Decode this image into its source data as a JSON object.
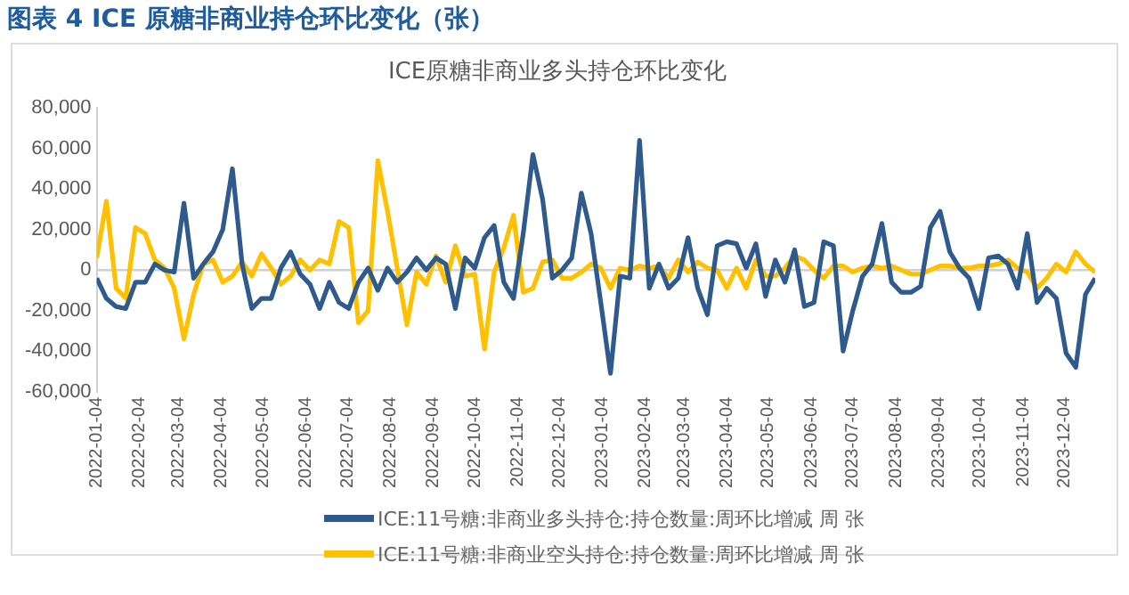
{
  "chart_data": {
    "type": "line",
    "title": "图表 4 ICE 原糖非商业持仓环比变化（张）",
    "subtitle": "ICE原糖非商业多头持仓环比变化",
    "x": [
      "2022-01-04",
      "2022-01-11",
      "2022-01-18",
      "2022-01-25",
      "2022-02-01",
      "2022-02-08",
      "2022-02-15",
      "2022-02-22",
      "2022-03-01",
      "2022-03-08",
      "2022-03-15",
      "2022-03-22",
      "2022-03-29",
      "2022-04-05",
      "2022-04-12",
      "2022-04-19",
      "2022-04-26",
      "2022-05-03",
      "2022-05-10",
      "2022-05-17",
      "2022-05-24",
      "2022-05-31",
      "2022-06-07",
      "2022-06-14",
      "2022-06-21",
      "2022-06-28",
      "2022-07-05",
      "2022-07-12",
      "2022-07-19",
      "2022-07-26",
      "2022-08-02",
      "2022-08-09",
      "2022-08-16",
      "2022-08-23",
      "2022-08-30",
      "2022-09-06",
      "2022-09-13",
      "2022-09-20",
      "2022-09-27",
      "2022-10-04",
      "2022-10-11",
      "2022-10-18",
      "2022-10-25",
      "2022-11-01",
      "2022-11-08",
      "2022-11-15",
      "2022-11-22",
      "2022-11-29",
      "2022-12-06",
      "2022-12-13",
      "2022-12-20",
      "2022-12-27",
      "2023-01-03",
      "2023-01-10",
      "2023-01-17",
      "2023-01-24",
      "2023-01-31",
      "2023-02-07",
      "2023-02-14",
      "2023-02-21",
      "2023-02-28",
      "2023-03-07",
      "2023-03-14",
      "2023-03-21",
      "2023-03-28",
      "2023-04-04",
      "2023-04-11",
      "2023-04-18",
      "2023-04-25",
      "2023-05-02",
      "2023-05-09",
      "2023-05-16",
      "2023-05-23",
      "2023-05-30",
      "2023-06-06",
      "2023-06-13",
      "2023-06-20",
      "2023-06-27",
      "2023-07-04",
      "2023-07-11",
      "2023-07-18",
      "2023-07-25",
      "2023-08-01",
      "2023-08-08",
      "2023-08-15",
      "2023-08-22",
      "2023-08-29",
      "2023-09-05",
      "2023-09-12",
      "2023-09-19",
      "2023-09-26",
      "2023-10-03",
      "2023-10-10",
      "2023-10-17",
      "2023-10-24",
      "2023-10-31",
      "2023-11-07",
      "2023-11-14",
      "2023-11-21",
      "2023-11-28",
      "2023-12-05",
      "2023-12-12",
      "2023-12-19",
      "2023-12-26"
    ],
    "series": [
      {
        "name": "ICE:11号糖:非商业多头持仓:持仓数量:周环比增减 周 张",
        "color": "#2e5a8e",
        "values": [
          -4000,
          -14000,
          -18000,
          -19000,
          -6000,
          -6000,
          3000,
          0,
          -1000,
          33000,
          -4000,
          3000,
          9000,
          20000,
          50000,
          3000,
          -19000,
          -14000,
          -14000,
          1000,
          9000,
          -2000,
          -7000,
          -19000,
          -6000,
          -16000,
          -19000,
          -6000,
          1000,
          -10000,
          1000,
          -6000,
          -1000,
          6000,
          0,
          6000,
          3000,
          -19000,
          6000,
          1000,
          16000,
          22000,
          -6000,
          -14000,
          18000,
          57000,
          35000,
          -4000,
          0,
          6000,
          38000,
          18000,
          -16000,
          -51000,
          -3000,
          -4000,
          64000,
          -9000,
          3000,
          -9000,
          -4000,
          16000,
          -9000,
          -22000,
          12000,
          14000,
          13000,
          1000,
          13000,
          -13000,
          5000,
          -6000,
          10000,
          -18000,
          -16000,
          14000,
          12000,
          -40000,
          -20000,
          -3000,
          3000,
          23000,
          -6000,
          -11000,
          -11000,
          -8000,
          21000,
          29000,
          9000,
          1000,
          -4000,
          -19000,
          6000,
          7000,
          3000,
          -9000,
          18000,
          -16000,
          -9000,
          -14000,
          -41000,
          -48000,
          -12000,
          -4000
        ]
      },
      {
        "name": "ICE:11号糖:非商业空头持仓:持仓数量:周环比增减 周 张",
        "color": "#ffc000",
        "values": [
          6000,
          34000,
          -9000,
          -14000,
          21000,
          18000,
          5000,
          1000,
          -9000,
          -34000,
          -12000,
          3000,
          5000,
          -6000,
          -3000,
          4000,
          -3000,
          8000,
          1000,
          -7000,
          -3000,
          5000,
          0,
          5000,
          3000,
          24000,
          21000,
          -26000,
          -20000,
          54000,
          29000,
          1000,
          -27000,
          -1000,
          -7000,
          7000,
          -6000,
          12000,
          -3000,
          -2000,
          -39000,
          -1000,
          11000,
          27000,
          -11000,
          -9000,
          4000,
          5000,
          -4000,
          -4000,
          -1000,
          3000,
          1000,
          -9000,
          1000,
          0,
          2000,
          1000,
          2000,
          -4000,
          5000,
          -1000,
          4000,
          1000,
          0,
          -9000,
          1000,
          -9000,
          5000,
          -3000,
          -3000,
          1000,
          7000,
          5000,
          0,
          -4000,
          2000,
          2000,
          -1000,
          1000,
          2000,
          1000,
          2000,
          0,
          -2000,
          -2000,
          0,
          2000,
          2000,
          1000,
          1000,
          2000,
          2000,
          3000,
          5000,
          1000,
          -1000,
          -9000,
          -4000,
          3000,
          -1000,
          9000,
          3000,
          -1000
        ]
      }
    ],
    "xlim": [
      "2022-01-04",
      "2023-12-26"
    ],
    "xticks": [
      "2022-01-04",
      "2022-02-04",
      "2022-03-04",
      "2022-04-04",
      "2022-05-04",
      "2022-06-04",
      "2022-07-04",
      "2022-08-04",
      "2022-09-04",
      "2022-10-04",
      "2022-11-04",
      "2022-12-04",
      "2023-01-04",
      "2023-02-04",
      "2023-03-04",
      "2023-04-04",
      "2023-05-04",
      "2023-06-04",
      "2023-07-04",
      "2023-08-04",
      "2023-09-04",
      "2023-10-04",
      "2023-11-04",
      "2023-12-04"
    ],
    "ylim": [
      -60000,
      80000
    ],
    "yticks": [
      {
        "value": -60000,
        "label": "-60,000"
      },
      {
        "value": -40000,
        "label": "-40,000"
      },
      {
        "value": -20000,
        "label": "-20,000"
      },
      0,
      {
        "value": 20000,
        "label": "20,000"
      },
      {
        "value": 40000,
        "label": "40,000"
      },
      {
        "value": 60000,
        "label": "60,000"
      },
      {
        "value": 80000,
        "label": "80,000"
      }
    ],
    "legend": "bottom",
    "line_style": "solid"
  }
}
